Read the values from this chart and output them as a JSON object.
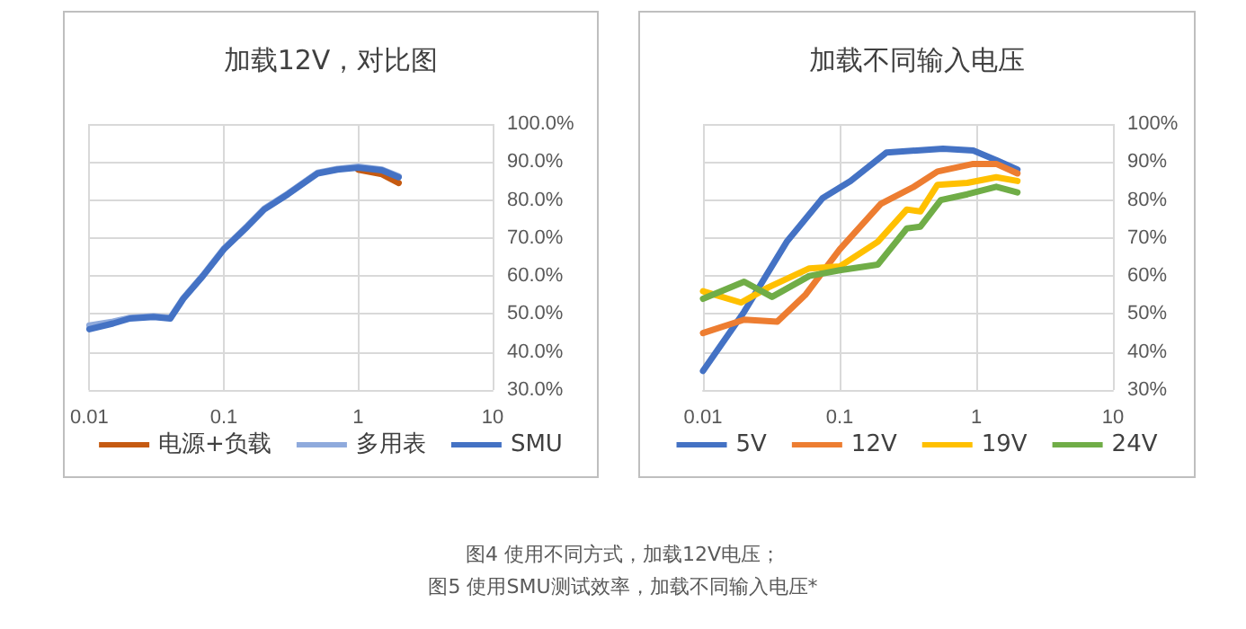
{
  "chart_data": [
    {
      "type": "line",
      "title": "加载12V，对比图",
      "xlim": [
        0.01,
        10
      ],
      "xticks": [
        0.01,
        0.1,
        1,
        10
      ],
      "ylim": [
        30,
        100
      ],
      "yticks": [
        {
          "value": 30,
          "label": "30.0%"
        },
        {
          "value": 40,
          "label": "40.0%"
        },
        {
          "value": 50,
          "label": "50.0%"
        },
        {
          "value": 60,
          "label": "60.0%"
        },
        {
          "value": 70,
          "label": "70.0%"
        },
        {
          "value": 80,
          "label": "80.0%"
        },
        {
          "value": 90,
          "label": "90.0%"
        },
        {
          "value": 100,
          "label": "100.0%"
        }
      ],
      "grid": true,
      "legend": "bottom",
      "marker": "none",
      "line_style": "solid",
      "log": "x",
      "x": [
        0.01,
        0.015,
        0.02,
        0.03,
        0.04,
        0.05,
        0.07,
        0.1,
        0.15,
        0.2,
        0.3,
        0.5,
        0.7,
        1,
        1.5,
        2
      ],
      "series": [
        {
          "name": "电源+负载",
          "color": "#c55a11",
          "values": [
            null,
            null,
            null,
            null,
            null,
            null,
            null,
            null,
            null,
            null,
            null,
            null,
            null,
            88,
            86.8,
            84.5
          ]
        },
        {
          "name": "多用表",
          "color": "#8faadc",
          "values": [
            47,
            48,
            49,
            49.4,
            49,
            54.2,
            60.2,
            67.2,
            73.2,
            77.7,
            81.7,
            87.2,
            88.2,
            88.8,
            88,
            86.2
          ]
        },
        {
          "name": "SMU",
          "color": "#4472c4",
          "values": [
            46,
            47.5,
            48.8,
            49.2,
            48.8,
            54,
            60,
            67,
            73,
            77.5,
            81.5,
            87,
            88,
            88.5,
            87.8,
            86
          ]
        }
      ],
      "annotations": [
        "图4 使用不同方式，加载12V电压；"
      ]
    },
    {
      "type": "line",
      "title": "加载不同输入电压",
      "xlim": [
        0.01,
        10
      ],
      "xticks": [
        0.01,
        0.1,
        1,
        10
      ],
      "ylim": [
        30,
        100
      ],
      "yticks": [
        {
          "value": 30,
          "label": "30%"
        },
        {
          "value": 40,
          "label": "40%"
        },
        {
          "value": 50,
          "label": "50%"
        },
        {
          "value": 60,
          "label": "60%"
        },
        {
          "value": 70,
          "label": "70%"
        },
        {
          "value": 80,
          "label": "80%"
        },
        {
          "value": 90,
          "label": "90%"
        },
        {
          "value": 100,
          "label": "100%"
        }
      ],
      "grid": true,
      "legend": "bottom",
      "marker": "none",
      "line_style": "solid",
      "log": "x",
      "series": [
        {
          "name": "5V",
          "color": "#4472c4",
          "x": [
            0.01,
            0.02,
            0.041,
            0.075,
            0.12,
            0.22,
            0.57,
            0.95,
            1.4,
            2
          ],
          "values": [
            35,
            50.6,
            69,
            80.5,
            85,
            92.5,
            93.5,
            93,
            90.5,
            88
          ]
        },
        {
          "name": "12V",
          "color": "#ed7d31",
          "x": [
            0.01,
            0.02,
            0.035,
            0.056,
            0.1,
            0.2,
            0.35,
            0.52,
            0.95,
            1.4,
            2
          ],
          "values": [
            45,
            48.5,
            48,
            55,
            67,
            79,
            83.5,
            87.5,
            89.5,
            89.5,
            87
          ]
        },
        {
          "name": "19V",
          "color": "#ffc000",
          "x": [
            0.01,
            0.019,
            0.03,
            0.06,
            0.1,
            0.19,
            0.31,
            0.39,
            0.52,
            0.86,
            1.4,
            2
          ],
          "values": [
            56,
            53,
            57,
            62,
            62.5,
            69,
            77.5,
            77,
            84,
            84.5,
            86,
            85
          ]
        },
        {
          "name": "24V",
          "color": "#70ad47",
          "x": [
            0.01,
            0.02,
            0.032,
            0.06,
            0.1,
            0.19,
            0.31,
            0.39,
            0.55,
            0.86,
            1.4,
            2
          ],
          "values": [
            54,
            58.5,
            54.5,
            60,
            61.5,
            63,
            72.5,
            73,
            80,
            81.5,
            83.5,
            82
          ]
        }
      ],
      "annotations": [
        "图5 使用SMU测试效率，加载不同输入电压*"
      ]
    }
  ]
}
